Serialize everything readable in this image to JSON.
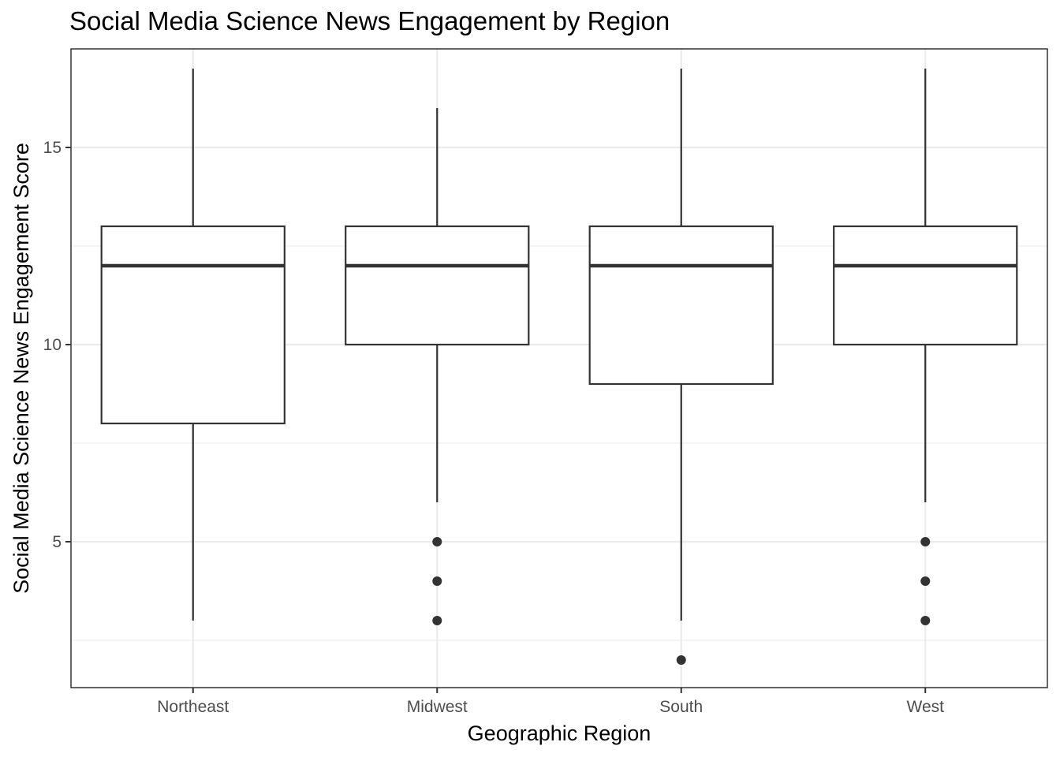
{
  "chart_data": {
    "type": "boxplot",
    "title": "Social Media Science News Engagement by Region",
    "xlabel": "Geographic Region",
    "ylabel": "Social Media Science News Engagement Score",
    "categories": [
      "Northeast",
      "Midwest",
      "South",
      "West"
    ],
    "y_ticks": [
      5,
      10,
      15
    ],
    "ylim": [
      1.3,
      17.5
    ],
    "grid": true,
    "boxes": [
      {
        "category": "Northeast",
        "whisker_low": 3,
        "q1": 8,
        "median": 12,
        "q3": 13,
        "whisker_high": 17,
        "outliers": []
      },
      {
        "category": "Midwest",
        "whisker_low": 6,
        "q1": 10,
        "median": 12,
        "q3": 13,
        "whisker_high": 16,
        "outliers": [
          5,
          4,
          3
        ]
      },
      {
        "category": "South",
        "whisker_low": 3,
        "q1": 9,
        "median": 12,
        "q3": 13,
        "whisker_high": 17,
        "outliers": [
          2
        ]
      },
      {
        "category": "West",
        "whisker_low": 6,
        "q1": 10,
        "median": 12,
        "q3": 13,
        "whisker_high": 17,
        "outliers": [
          5,
          4,
          3
        ]
      }
    ],
    "colors": {
      "box_stroke": "#333333",
      "box_fill": "#ffffff",
      "grid": "#ebebeb",
      "panel_border": "#333333"
    }
  }
}
